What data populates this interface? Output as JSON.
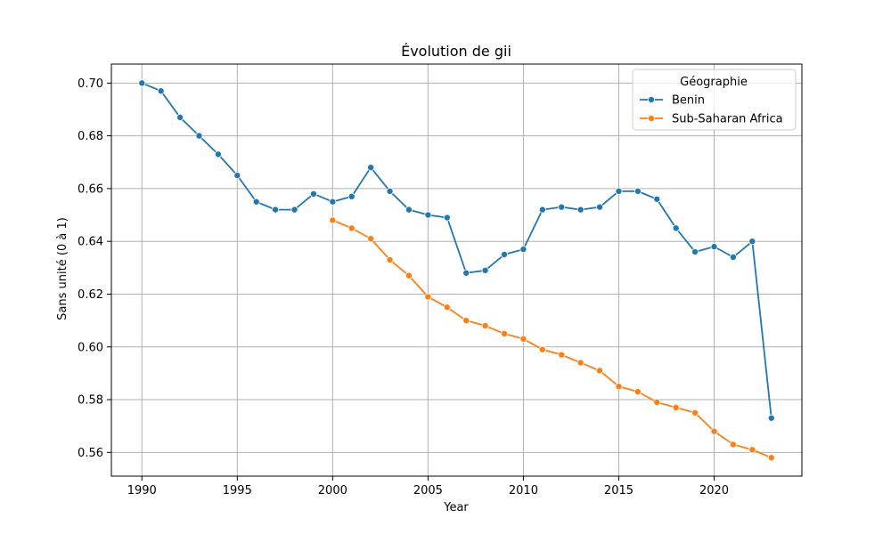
{
  "chart_data": {
    "type": "line",
    "title": "Évolution de gii",
    "xlabel": "Year",
    "ylabel": "Sans unité (0 à 1)",
    "xlim": [
      1988.4,
      2024.6
    ],
    "ylim": [
      0.551,
      0.7072
    ],
    "xticks": [
      1990,
      1995,
      2000,
      2005,
      2010,
      2015,
      2020
    ],
    "yticks": [
      0.56,
      0.58,
      0.6,
      0.62,
      0.64,
      0.66,
      0.68,
      0.7
    ],
    "ytick_labels": [
      "0.56",
      "0.58",
      "0.60",
      "0.62",
      "0.64",
      "0.66",
      "0.68",
      "0.70"
    ],
    "grid": true,
    "legend": {
      "title": "Géographie",
      "position": "top-right"
    },
    "series": [
      {
        "name": "Benin",
        "color": "#1f77b4",
        "x": [
          1990,
          1991,
          1992,
          1993,
          1994,
          1995,
          1996,
          1997,
          1998,
          1999,
          2000,
          2001,
          2002,
          2003,
          2004,
          2005,
          2006,
          2007,
          2008,
          2009,
          2010,
          2011,
          2012,
          2013,
          2014,
          2015,
          2016,
          2017,
          2018,
          2019,
          2020,
          2021,
          2022,
          2023
        ],
        "values": [
          0.7,
          0.697,
          0.687,
          0.68,
          0.673,
          0.665,
          0.655,
          0.652,
          0.652,
          0.658,
          0.655,
          0.657,
          0.668,
          0.659,
          0.652,
          0.65,
          0.649,
          0.628,
          0.629,
          0.635,
          0.637,
          0.652,
          0.653,
          0.652,
          0.653,
          0.659,
          0.659,
          0.656,
          0.645,
          0.636,
          0.638,
          0.634,
          0.64,
          0.573
        ]
      },
      {
        "name": "Sub-Saharan Africa",
        "color": "#ff7f0e",
        "x": [
          2000,
          2001,
          2002,
          2003,
          2004,
          2005,
          2006,
          2007,
          2008,
          2009,
          2010,
          2011,
          2012,
          2013,
          2014,
          2015,
          2016,
          2017,
          2018,
          2019,
          2020,
          2021,
          2022,
          2023
        ],
        "values": [
          0.648,
          0.645,
          0.641,
          0.633,
          0.627,
          0.619,
          0.615,
          0.61,
          0.608,
          0.605,
          0.603,
          0.599,
          0.597,
          0.594,
          0.591,
          0.585,
          0.583,
          0.579,
          0.577,
          0.575,
          0.568,
          0.563,
          0.561,
          0.558
        ]
      }
    ]
  }
}
